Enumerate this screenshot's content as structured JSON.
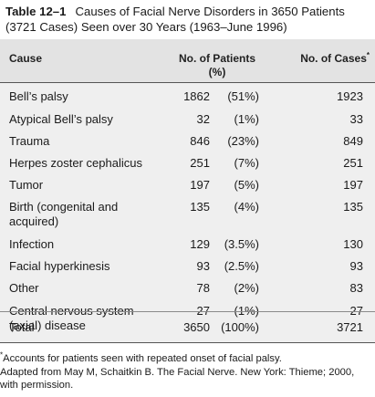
{
  "caption": {
    "label": "Table 12–1",
    "title": "Causes of Facial Nerve Disorders in 3650 Patients (3721 Cases) Seen over 30 Years (1963–June 1996)"
  },
  "headers": {
    "cause": "Cause",
    "patients_line1": "No. of Patients",
    "patients_line2": "(%)",
    "cases": "No. of Cases",
    "cases_mark": "*"
  },
  "rows": [
    {
      "cause": "Bell’s palsy",
      "patients": "1862",
      "percent": "(51%)",
      "cases": "1923"
    },
    {
      "cause": "Atypical Bell’s palsy",
      "patients": "32",
      "percent": "(1%)",
      "cases": "33"
    },
    {
      "cause": "Trauma",
      "patients": "846",
      "percent": "(23%)",
      "cases": "849"
    },
    {
      "cause": "Herpes zoster cephalicus",
      "patients": "251",
      "percent": "(7%)",
      "cases": "251"
    },
    {
      "cause": "Tumor",
      "patients": "197",
      "percent": "(5%)",
      "cases": "197"
    },
    {
      "cause": "Birth (congenital and acquired)",
      "patients": "135",
      "percent": "(4%)",
      "cases": "135"
    },
    {
      "cause": "Infection",
      "patients": "129",
      "percent": "(3.5%)",
      "cases": "130"
    },
    {
      "cause": "Facial hyperkinesis",
      "patients": "93",
      "percent": "(2.5%)",
      "cases": "93"
    },
    {
      "cause": "Other",
      "patients": "78",
      "percent": "(2%)",
      "cases": "83"
    },
    {
      "cause": "Central nervous system (axial) disease",
      "patients": "27",
      "percent": "(1%)",
      "cases": "27"
    }
  ],
  "total": {
    "cause": "Total",
    "patients": "3650",
    "percent": "(100%)",
    "cases": "3721"
  },
  "notes": {
    "footnote_mark": "*",
    "footnote": "Accounts for patients seen with repeated onset of facial palsy.",
    "source": "Adapted from May M, Schaitkin B. The Facial Nerve. New York: Thieme; 2000, with permission."
  }
}
